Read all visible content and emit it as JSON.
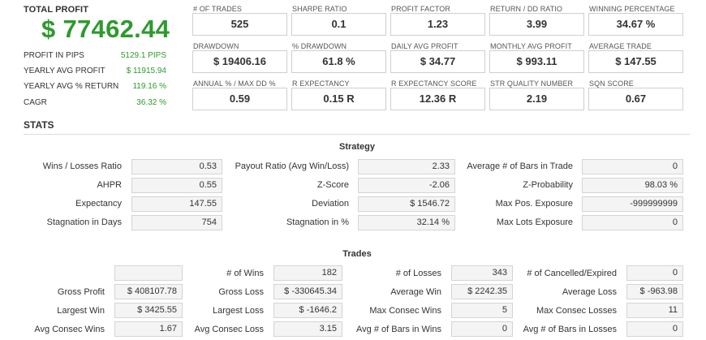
{
  "summary": {
    "total_profit_label": "TOTAL PROFIT",
    "total_profit_value": "$ 77462.44",
    "rows": [
      {
        "label": "PROFIT IN PIPS",
        "value": "5129.1 PIPS"
      },
      {
        "label": "YEARLY AVG PROFIT",
        "value": "$ 11915.94"
      },
      {
        "label": "YEARLY AVG % RETURN",
        "value": "119.16 %"
      },
      {
        "label": "CAGR",
        "value": "36.32 %"
      }
    ]
  },
  "metrics": [
    [
      {
        "label": "# OF TRADES",
        "value": "525"
      },
      {
        "label": "SHARPE RATIO",
        "value": "0.1"
      },
      {
        "label": "PROFIT FACTOR",
        "value": "1.23"
      },
      {
        "label": "RETURN / DD RATIO",
        "value": "3.99"
      },
      {
        "label": "WINNING PERCENTAGE",
        "value": "34.67 %"
      }
    ],
    [
      {
        "label": "DRAWDOWN",
        "value": "$ 19406.16"
      },
      {
        "label": "% DRAWDOWN",
        "value": "61.8 %"
      },
      {
        "label": "DAILY AVG PROFIT",
        "value": "$ 34.77"
      },
      {
        "label": "MONTHLY AVG PROFIT",
        "value": "$ 993.11"
      },
      {
        "label": "AVERAGE TRADE",
        "value": "$ 147.55"
      }
    ],
    [
      {
        "label": "ANNUAL % / MAX DD %",
        "value": "0.59"
      },
      {
        "label": "R EXPECTANCY",
        "value": "0.15 R"
      },
      {
        "label": "R EXPECTANCY SCORE",
        "value": "12.36 R"
      },
      {
        "label": "STR QUALITY NUMBER",
        "value": "2.19"
      },
      {
        "label": "SQN SCORE",
        "value": "0.67"
      }
    ]
  ],
  "stats": {
    "title": "STATS",
    "strategy": {
      "title": "Strategy",
      "rows": [
        [
          {
            "label": "Wins / Losses Ratio",
            "value": "0.53"
          },
          {
            "label": "Payout Ratio (Avg Win/Loss)",
            "value": "2.33"
          },
          {
            "label": "Average # of Bars in Trade",
            "value": "0"
          }
        ],
        [
          {
            "label": "AHPR",
            "value": "0.55"
          },
          {
            "label": "Z-Score",
            "value": "-2.06"
          },
          {
            "label": "Z-Probability",
            "value": "98.03 %"
          }
        ],
        [
          {
            "label": "Expectancy",
            "value": "147.55"
          },
          {
            "label": "Deviation",
            "value": "$ 1546.72"
          },
          {
            "label": "Max Pos. Exposure",
            "value": "-999999999"
          }
        ],
        [
          {
            "label": "Stagnation in Days",
            "value": "754"
          },
          {
            "label": "Stagnation in %",
            "value": "32.14 %"
          },
          {
            "label": "Max Lots Exposure",
            "value": "0"
          }
        ]
      ]
    },
    "trades": {
      "title": "Trades",
      "rows": [
        [
          {
            "label": "",
            "value": ""
          },
          {
            "label": "# of Wins",
            "value": "182"
          },
          {
            "label": "# of Losses",
            "value": "343"
          },
          {
            "label": "# of Cancelled/Expired",
            "value": "0"
          }
        ],
        [
          {
            "label": "Gross Profit",
            "value": "$ 408107.78"
          },
          {
            "label": "Gross Loss",
            "value": "$ -330645.34"
          },
          {
            "label": "Average Win",
            "value": "$ 2242.35"
          },
          {
            "label": "Average Loss",
            "value": "$ -963.98"
          }
        ],
        [
          {
            "label": "Largest Win",
            "value": "$ 3425.55"
          },
          {
            "label": "Largest Loss",
            "value": "$ -1646.2"
          },
          {
            "label": "Max Consec Wins",
            "value": "5"
          },
          {
            "label": "Max Consec Losses",
            "value": "11"
          }
        ],
        [
          {
            "label": "Avg Consec Wins",
            "value": "1.67"
          },
          {
            "label": "Avg Consec Loss",
            "value": "3.15"
          },
          {
            "label": "Avg # of Bars in Wins",
            "value": "0"
          },
          {
            "label": "Avg # of Bars in Losses",
            "value": "0"
          }
        ]
      ]
    }
  }
}
